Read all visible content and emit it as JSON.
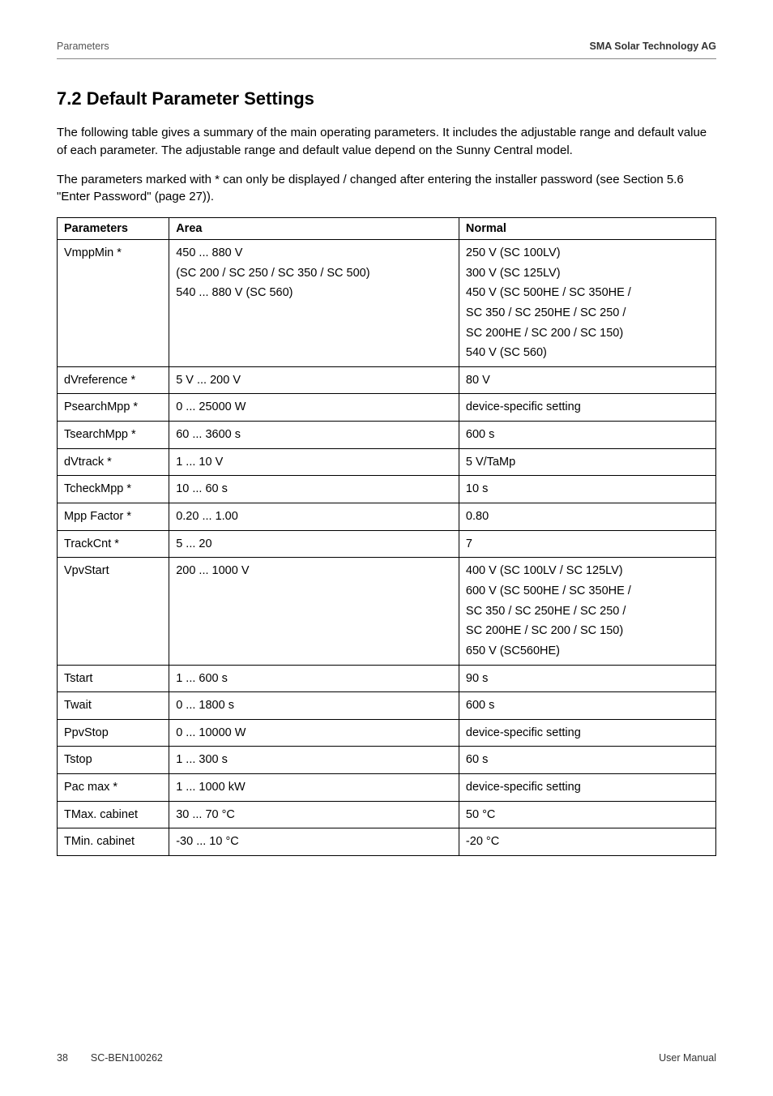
{
  "header": {
    "left": "Parameters",
    "right": "SMA Solar Technology AG"
  },
  "section": {
    "number": "7.2",
    "title": "Default Parameter Settings"
  },
  "paragraphs": {
    "p1": "The following table gives a summary of the main operating parameters. It includes the adjustable range and default value of each parameter. The adjustable range and default value depend on the Sunny Central model.",
    "p2": "The parameters marked with * can only be displayed / changed after entering the installer password (see Section 5.6 \"Enter Password\" (page 27))."
  },
  "table": {
    "headers": {
      "c1": "Parameters",
      "c2": "Area",
      "c3": "Normal"
    },
    "rows": [
      {
        "param": "VmppMin *",
        "area": "450 ... 880 V\n(SC 200 / SC 250 / SC 350 / SC 500)\n540 ... 880 V (SC 560)",
        "normal": "250 V (SC 100LV)\n300 V (SC 125LV)\n450 V (SC 500HE / SC 350HE /\nSC 350 / SC 250HE / SC 250 /\nSC 200HE / SC 200 / SC 150)\n540 V (SC 560)"
      },
      {
        "param": "dVreference *",
        "area": "5 V ... 200 V",
        "normal": "80 V"
      },
      {
        "param": "PsearchMpp *",
        "area": "0 ... 25000 W",
        "normal": "device-specific setting"
      },
      {
        "param": "TsearchMpp *",
        "area": "60 ... 3600 s",
        "normal": "600 s"
      },
      {
        "param": "dVtrack *",
        "area": "1 ... 10 V",
        "normal": "5 V/TaMp"
      },
      {
        "param": "TcheckMpp *",
        "area": "10 ... 60 s",
        "normal": "10 s"
      },
      {
        "param": "Mpp Factor *",
        "area": "0.20 ... 1.00",
        "normal": "0.80"
      },
      {
        "param": "TrackCnt *",
        "area": "5 ... 20",
        "normal": "7"
      },
      {
        "param": "VpvStart",
        "area": "200 ... 1000 V",
        "normal": "400 V (SC 100LV / SC 125LV)\n600 V (SC 500HE / SC 350HE /\nSC 350 / SC 250HE / SC 250 /\nSC 200HE / SC 200 / SC 150)\n650 V (SC560HE)"
      },
      {
        "param": "Tstart",
        "area": "1 ... 600 s",
        "normal": "90 s"
      },
      {
        "param": "Twait",
        "area": "0 ... 1800 s",
        "normal": "600 s"
      },
      {
        "param": "PpvStop",
        "area": "0 ... 10000 W",
        "normal": "device-specific setting"
      },
      {
        "param": "Tstop",
        "area": "1 ... 300 s",
        "normal": "60 s"
      },
      {
        "param": "Pac max *",
        "area": "1 ... 1000 kW",
        "normal": "device-specific setting"
      },
      {
        "param": "TMax. cabinet",
        "area": "30 ... 70 °C",
        "normal": "50 °C"
      },
      {
        "param": "TMin. cabinet",
        "area": "-30 ... 10 °C",
        "normal": "-20 °C"
      }
    ]
  },
  "footer": {
    "page": "38",
    "doc": "SC-BEN100262",
    "right": "User Manual"
  }
}
